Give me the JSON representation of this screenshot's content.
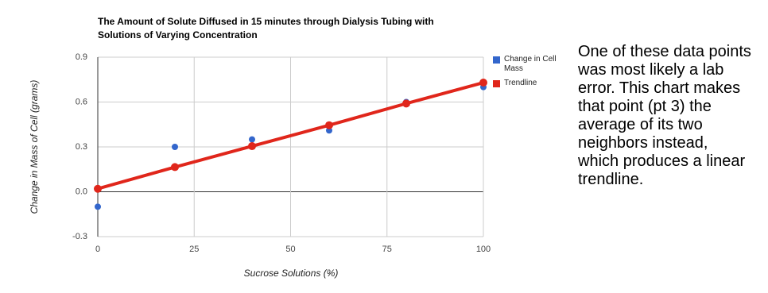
{
  "chart_data": {
    "type": "scatter",
    "title": [
      "The Amount of Solute Diffused in 15 minutes through Dialysis Tubing with",
      "Solutions of Varying Concentration"
    ],
    "x_label": "Sucrose Solutions (%)",
    "y_label": "Change in Mass of Cell (grams)",
    "x": [
      0,
      20,
      40,
      60,
      80,
      100
    ],
    "series": [
      {
        "name": "Change in Cell Mass",
        "color": "#3366cc",
        "type": "scatter",
        "values": [
          -0.1,
          0.3,
          0.35,
          0.41,
          0.6,
          0.7
        ]
      },
      {
        "name": "Trendline",
        "color": "#e0261b",
        "type": "line",
        "values": [
          0.02,
          0.165,
          0.305,
          0.445,
          0.59,
          0.73
        ]
      }
    ],
    "xlim": [
      0,
      100
    ],
    "xticks": [
      0,
      25,
      50,
      75,
      100
    ],
    "ylim": [
      -0.3,
      0.9
    ],
    "yticks": [
      -0.3,
      {
        "value": 0,
        "label": "0.0"
      },
      0.3,
      0.6,
      0.9
    ],
    "grid": true,
    "legend": "right"
  },
  "annotation": "One of these data points was most likely a lab error. This chart makes that point (pt 3) the average of its two neighbors instead, which produces a linear trendline."
}
